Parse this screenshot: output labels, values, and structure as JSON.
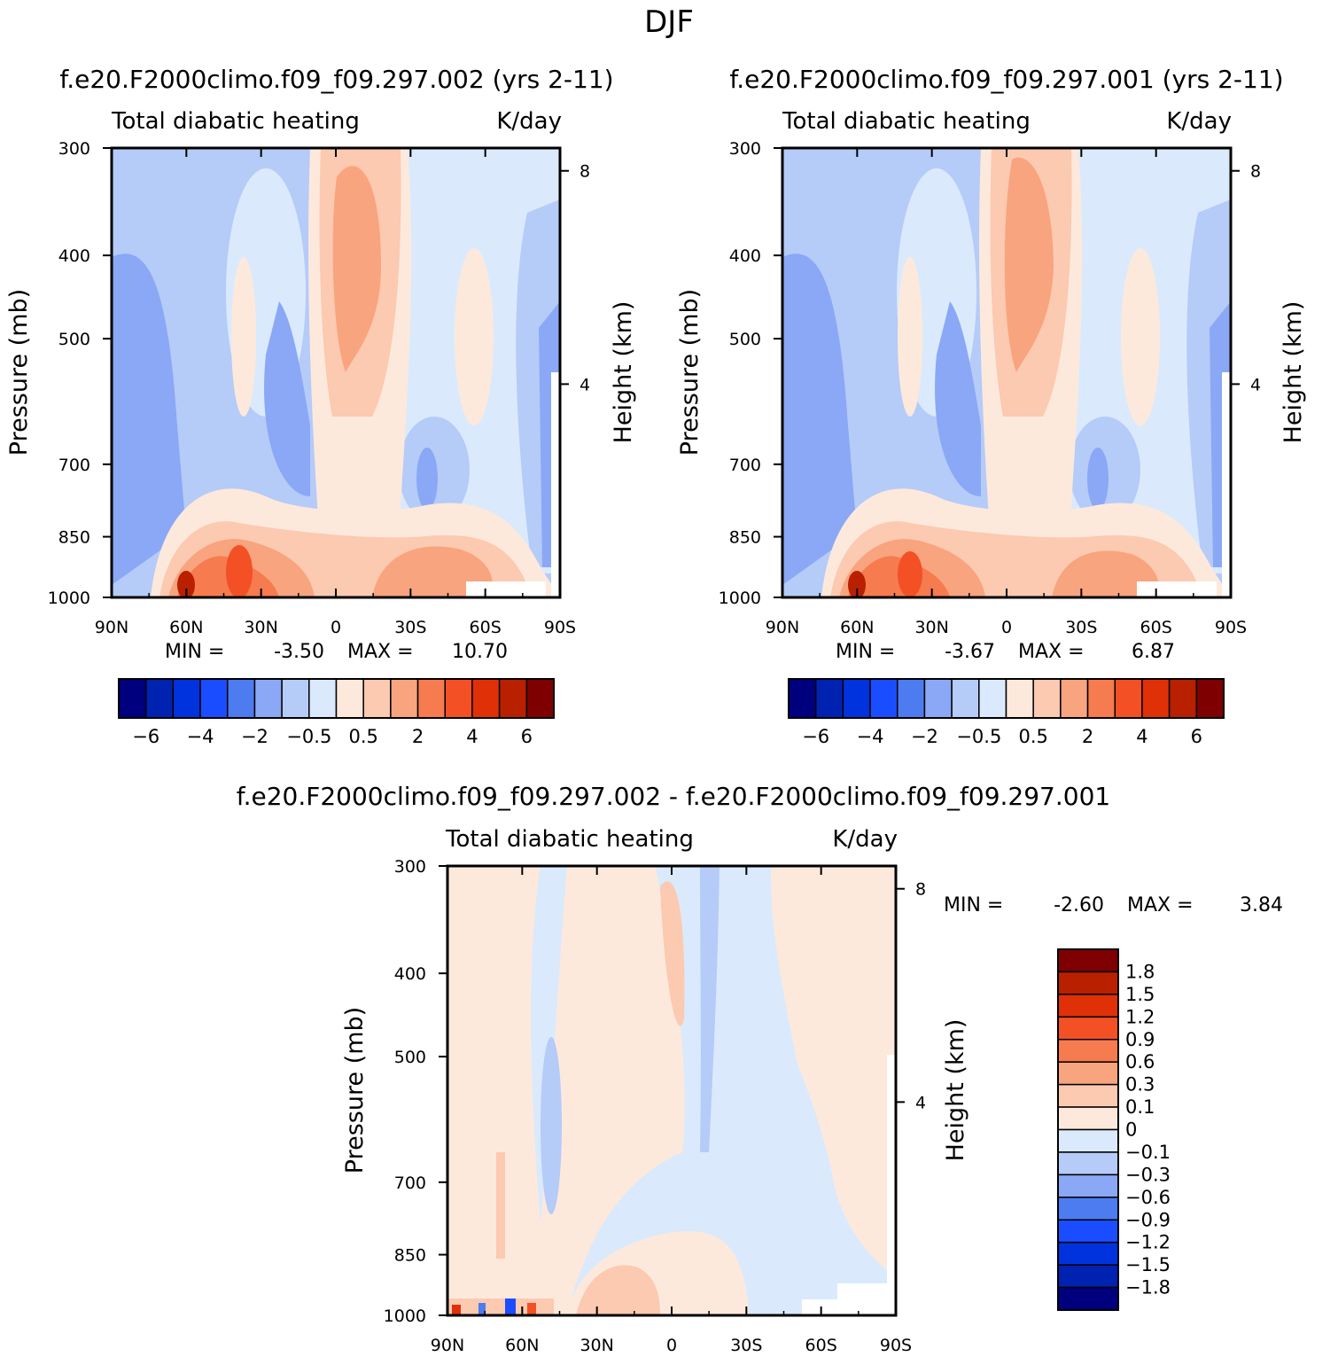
{
  "page_title": "DJF",
  "colors": {
    "neg": [
      "#00007f",
      "#0022b0",
      "#0033dd",
      "#1a4dff",
      "#4d7bf0",
      "#8aa8f5",
      "#b5cbf8",
      "#daeafc"
    ],
    "pos": [
      "#fde9dc",
      "#fcc9b1",
      "#f8a47f",
      "#f67b4f",
      "#f45025",
      "#e03008",
      "#b82000",
      "#7f0000"
    ],
    "diff_neg": [
      "#00007f",
      "#0022b0",
      "#0033dd",
      "#1a4dff",
      "#4d7bf0",
      "#8aa8f5",
      "#b5cbf8",
      "#daeafc"
    ],
    "diff_pos": [
      "#fde9dc",
      "#fcc9b1",
      "#f8a47f",
      "#f67b4f",
      "#f45025",
      "#e03008",
      "#b82000",
      "#7f0000"
    ]
  },
  "chart_data": [
    {
      "type": "heatmap",
      "title": "f.e20.F2000climo.f09_f09.297.002 (yrs 2-11)",
      "subtitle_left": "Total diabatic heating",
      "subtitle_right": "K/day",
      "xlabel": "",
      "ylabel": "Pressure (mb)",
      "y2label": "Height (km)",
      "xticks": [
        "90N",
        "60N",
        "30N",
        "0",
        "30S",
        "60S",
        "90S"
      ],
      "yticks": [
        "300",
        "400",
        "500",
        "700",
        "850",
        "1000"
      ],
      "y2ticks": [
        "8",
        "4"
      ],
      "min_label": "MIN =",
      "min": "-3.50",
      "max_label": "MAX =",
      "max": "10.70",
      "colorbar_labels": [
        "-6",
        "-4",
        "-2",
        "-0.5",
        "0.5",
        "2",
        "4",
        "6"
      ]
    },
    {
      "type": "heatmap",
      "title": "f.e20.F2000climo.f09_f09.297.001 (yrs 2-11)",
      "subtitle_left": "Total diabatic heating",
      "subtitle_right": "K/day",
      "xlabel": "",
      "ylabel": "Pressure (mb)",
      "y2label": "Height (km)",
      "xticks": [
        "90N",
        "60N",
        "30N",
        "0",
        "30S",
        "60S",
        "90S"
      ],
      "yticks": [
        "300",
        "400",
        "500",
        "700",
        "850",
        "1000"
      ],
      "y2ticks": [
        "8",
        "4"
      ],
      "min_label": "MIN =",
      "min": "-3.67",
      "max_label": "MAX =",
      "max": "6.87",
      "colorbar_labels": [
        "-6",
        "-4",
        "-2",
        "-0.5",
        "0.5",
        "2",
        "4",
        "6"
      ]
    },
    {
      "type": "heatmap",
      "title": "f.e20.F2000climo.f09_f09.297.002 - f.e20.F2000climo.f09_f09.297.001",
      "subtitle_left": "Total diabatic heating",
      "subtitle_right": "K/day",
      "xlabel": "",
      "ylabel": "Pressure (mb)",
      "y2label": "Height (km)",
      "xticks": [
        "90N",
        "60N",
        "30N",
        "0",
        "30S",
        "60S",
        "90S"
      ],
      "yticks": [
        "300",
        "400",
        "500",
        "700",
        "850",
        "1000"
      ],
      "y2ticks": [
        "8",
        "4"
      ],
      "min_label": "MIN =",
      "min": "-2.60",
      "max_label": "MAX =",
      "max": "3.84",
      "colorbar_labels": [
        "1.8",
        "1.5",
        "1.2",
        "0.9",
        "0.6",
        "0.3",
        "0.1",
        "0",
        "-0.1",
        "-0.3",
        "-0.6",
        "-0.9",
        "-1.2",
        "-1.5",
        "-1.8"
      ]
    }
  ]
}
